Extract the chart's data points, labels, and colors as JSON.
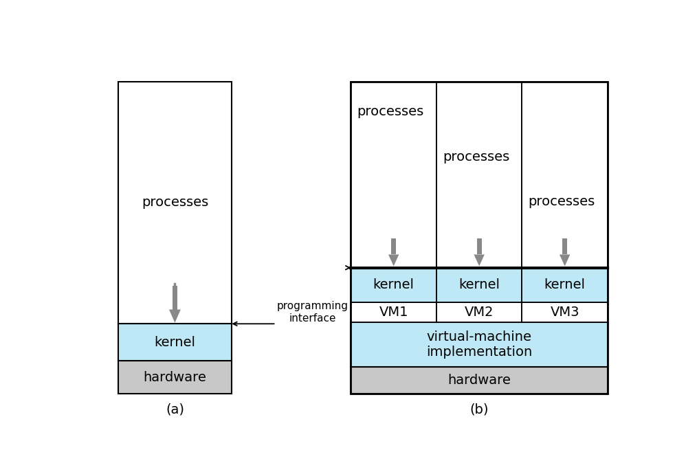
{
  "bg_color": "#ffffff",
  "border_color": "#000000",
  "kernel_color": "#bee8f5",
  "hardware_color": "#c8c8c8",
  "vm_impl_color": "#bee8f5",
  "arrow_color": "#888888",
  "text_color": "#000000",
  "label_a": "(a)",
  "label_b": "(b)",
  "processes_text": "processes",
  "kernel_text": "kernel",
  "hardware_text": "hardware",
  "vm1_text": "VM1",
  "vm2_text": "VM2",
  "vm3_text": "VM3",
  "vm_impl_text": "virtual-machine\nimplementation",
  "prog_interface_text": "programming\ninterface",
  "font_size_main": 14,
  "font_size_label": 14
}
